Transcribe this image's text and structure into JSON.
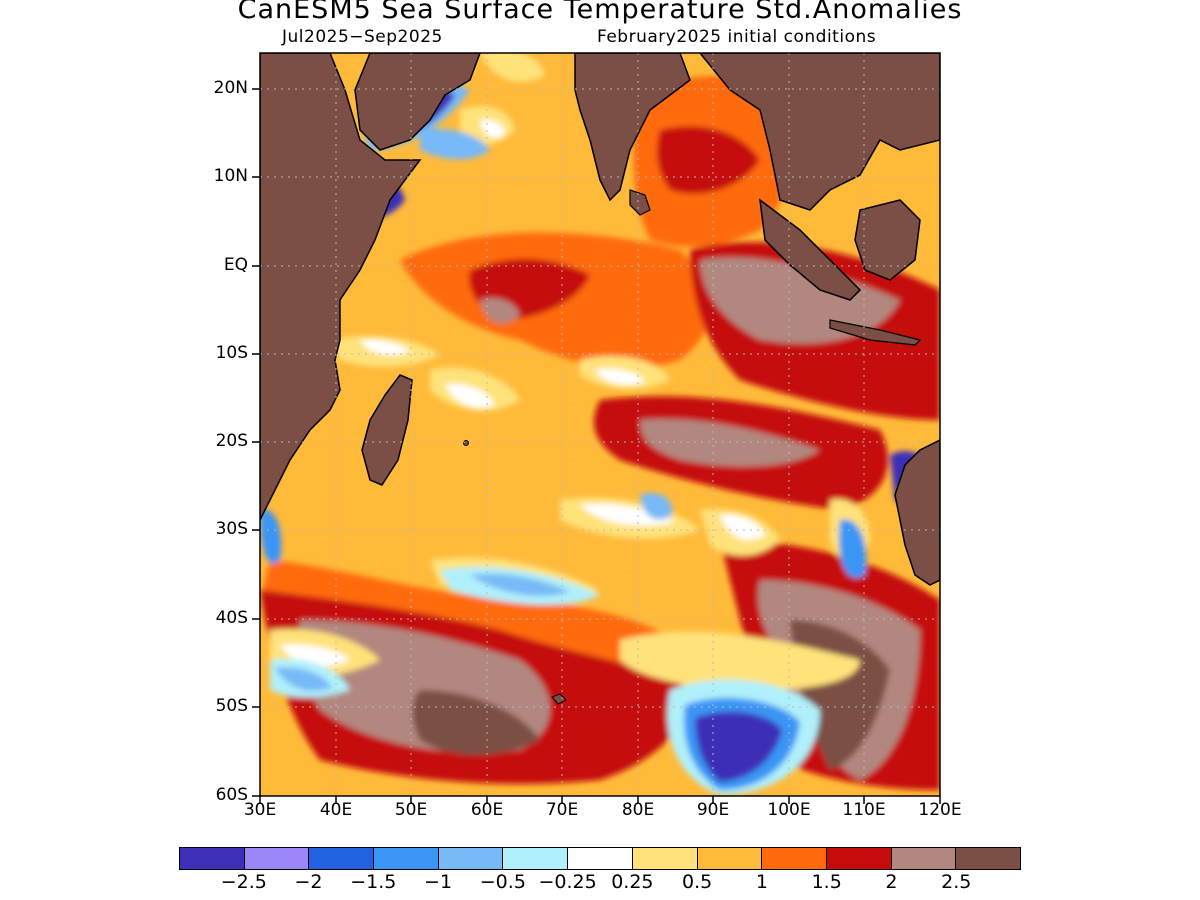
{
  "title": "CanESM5 Sea Surface Temperature Std.Anomalies",
  "subtitle_left": "Jul2025−Sep2025",
  "subtitle_right": "February2025 initial conditions",
  "map": {
    "lon_range": [
      30,
      120
    ],
    "lat_range": [
      -60,
      24
    ],
    "grid": "dotted",
    "land_color": "#7b4f45",
    "coastline_color": "#000000"
  },
  "axes": {
    "y_ticks": [
      "20N",
      "10N",
      "EQ",
      "10S",
      "20S",
      "30S",
      "40S",
      "50S",
      "60S"
    ],
    "x_ticks": [
      "30E",
      "40E",
      "50E",
      "60E",
      "70E",
      "80E",
      "90E",
      "100E",
      "110E",
      "120E"
    ]
  },
  "colorbar": {
    "colors": [
      "#3e2fb8",
      "#9b87f5",
      "#2262e0",
      "#3b95f5",
      "#78b9f7",
      "#b0f0fa",
      "#ffffff",
      "#ffe27a",
      "#ffba3a",
      "#ff6a0c",
      "#c50b0b",
      "#b2877f",
      "#7b4f45"
    ],
    "labels": [
      "−2.5",
      "−2",
      "−1.5",
      "−1",
      "−0.5",
      "−0.25",
      "0.25",
      "0.5",
      "1",
      "1.5",
      "2",
      "2.5"
    ]
  }
}
